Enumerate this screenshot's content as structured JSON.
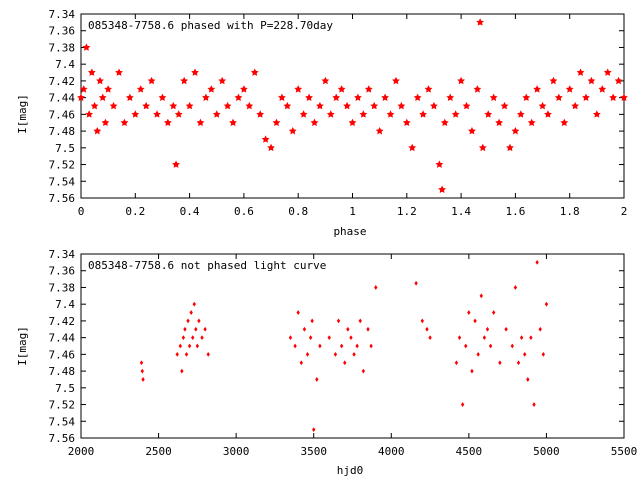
{
  "chart_data": [
    {
      "type": "scatter",
      "title": "085348-7758.6 phased with P=228.70day",
      "xlabel": "phase",
      "ylabel": "I[mag]",
      "xlim": [
        0,
        2
      ],
      "ylim": [
        7.56,
        7.34
      ],
      "y_inverted": true,
      "xticks": [
        "0",
        "0.2",
        "0.4",
        "0.6",
        "0.8",
        "1",
        "1.2",
        "1.4",
        "1.6",
        "1.8",
        "2"
      ],
      "yticks": [
        "7.34",
        "7.36",
        "7.38",
        "7.4",
        "7.42",
        "7.44",
        "7.46",
        "7.48",
        "7.5",
        "7.52",
        "7.54",
        "7.56"
      ],
      "marker": "filled-star",
      "color": "#ff0000",
      "grid": false,
      "series": [
        {
          "x": [
            0.0,
            0.01,
            0.02,
            0.03,
            0.04,
            0.05,
            0.06,
            0.07,
            0.08,
            0.09,
            0.1,
            0.12,
            0.14,
            0.16,
            0.18,
            0.2,
            0.22,
            0.24,
            0.26,
            0.28,
            0.3,
            0.32,
            0.34,
            0.35,
            0.36,
            0.38,
            0.4,
            0.42,
            0.44,
            0.46,
            0.48,
            0.5,
            0.52,
            0.54,
            0.56,
            0.58,
            0.6,
            0.62,
            0.64,
            0.66,
            0.68,
            0.7,
            0.72,
            0.74,
            0.76,
            0.78,
            0.8,
            0.82,
            0.84,
            0.86,
            0.88,
            0.9,
            0.92,
            0.94,
            0.96,
            0.98,
            1.0,
            1.02,
            1.04,
            1.06,
            1.08,
            1.1,
            1.12,
            1.14,
            1.16,
            1.18,
            1.2,
            1.22,
            1.24,
            1.26,
            1.28,
            1.3,
            1.32,
            1.33,
            1.34,
            1.36,
            1.38,
            1.4,
            1.42,
            1.44,
            1.46,
            1.47,
            1.48,
            1.5,
            1.52,
            1.54,
            1.56,
            1.58,
            1.6,
            1.62,
            1.64,
            1.66,
            1.68,
            1.7,
            1.72,
            1.74,
            1.76,
            1.78,
            1.8,
            1.82,
            1.84,
            1.86,
            1.88,
            1.9,
            1.92,
            1.94,
            1.96,
            1.98,
            2.0
          ],
          "y": [
            7.44,
            7.43,
            7.38,
            7.46,
            7.41,
            7.45,
            7.48,
            7.42,
            7.44,
            7.47,
            7.43,
            7.45,
            7.41,
            7.47,
            7.44,
            7.46,
            7.43,
            7.45,
            7.42,
            7.46,
            7.44,
            7.47,
            7.45,
            7.52,
            7.46,
            7.42,
            7.45,
            7.41,
            7.47,
            7.44,
            7.43,
            7.46,
            7.42,
            7.45,
            7.47,
            7.44,
            7.43,
            7.45,
            7.41,
            7.46,
            7.49,
            7.5,
            7.47,
            7.44,
            7.45,
            7.48,
            7.43,
            7.46,
            7.44,
            7.47,
            7.45,
            7.42,
            7.46,
            7.44,
            7.43,
            7.45,
            7.47,
            7.44,
            7.46,
            7.43,
            7.45,
            7.48,
            7.44,
            7.46,
            7.42,
            7.45,
            7.47,
            7.5,
            7.44,
            7.46,
            7.43,
            7.45,
            7.52,
            7.55,
            7.47,
            7.44,
            7.46,
            7.42,
            7.45,
            7.48,
            7.43,
            7.35,
            7.5,
            7.46,
            7.44,
            7.47,
            7.45,
            7.5,
            7.48,
            7.46,
            7.44,
            7.47,
            7.43,
            7.45,
            7.46,
            7.42,
            7.44,
            7.47,
            7.43,
            7.45,
            7.41,
            7.44,
            7.42,
            7.46,
            7.43,
            7.41,
            7.44,
            7.42,
            7.44
          ]
        }
      ]
    },
    {
      "type": "scatter",
      "title": "085348-7758.6 not phased light curve",
      "xlabel": "hjd0",
      "ylabel": "I[mag]",
      "xlim": [
        2000,
        5500
      ],
      "ylim": [
        7.56,
        7.34
      ],
      "y_inverted": true,
      "xticks": [
        "2000",
        "2500",
        "3000",
        "3500",
        "4000",
        "4500",
        "5000",
        "5500"
      ],
      "yticks": [
        "7.34",
        "7.36",
        "7.38",
        "7.4",
        "7.42",
        "7.44",
        "7.46",
        "7.48",
        "7.5",
        "7.52",
        "7.54",
        "7.56"
      ],
      "marker": "diamond",
      "color": "#ff0000",
      "grid": false,
      "series": [
        {
          "x": [
            2390,
            2395,
            2400,
            2620,
            2640,
            2650,
            2660,
            2670,
            2680,
            2690,
            2700,
            2710,
            2720,
            2730,
            2740,
            2750,
            2760,
            2780,
            2800,
            2820,
            3350,
            3380,
            3400,
            3420,
            3440,
            3460,
            3480,
            3490,
            3500,
            3520,
            3540,
            3600,
            3640,
            3660,
            3680,
            3700,
            3720,
            3740,
            3760,
            3780,
            3800,
            3820,
            3850,
            3870,
            3900,
            4160,
            4200,
            4230,
            4250,
            4420,
            4440,
            4460,
            4480,
            4500,
            4520,
            4540,
            4560,
            4580,
            4600,
            4620,
            4640,
            4660,
            4700,
            4740,
            4780,
            4800,
            4820,
            4840,
            4860,
            4880,
            4900,
            4920,
            4940,
            4960,
            4980,
            5000
          ],
          "y": [
            7.47,
            7.48,
            7.49,
            7.46,
            7.45,
            7.48,
            7.44,
            7.43,
            7.46,
            7.42,
            7.45,
            7.41,
            7.44,
            7.4,
            7.43,
            7.45,
            7.42,
            7.44,
            7.43,
            7.46,
            7.44,
            7.45,
            7.41,
            7.47,
            7.43,
            7.46,
            7.44,
            7.42,
            7.55,
            7.49,
            7.45,
            7.44,
            7.46,
            7.42,
            7.45,
            7.47,
            7.43,
            7.44,
            7.46,
            7.45,
            7.42,
            7.48,
            7.43,
            7.45,
            7.38,
            7.375,
            7.42,
            7.43,
            7.44,
            7.47,
            7.44,
            7.52,
            7.45,
            7.41,
            7.48,
            7.42,
            7.46,
            7.39,
            7.44,
            7.43,
            7.45,
            7.41,
            7.47,
            7.43,
            7.45,
            7.38,
            7.47,
            7.44,
            7.46,
            7.49,
            7.44,
            7.52,
            7.35,
            7.43,
            7.46,
            7.4
          ]
        }
      ]
    }
  ]
}
